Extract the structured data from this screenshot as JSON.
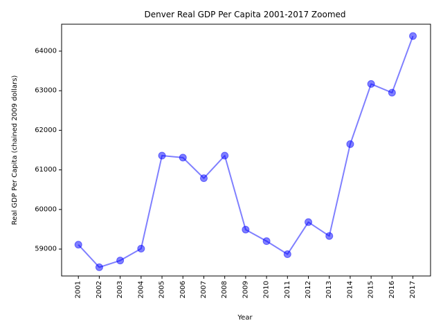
{
  "chart_data": {
    "type": "line",
    "title": "Denver Real GDP Per Capita 2001-2017 Zoomed",
    "xlabel": "Year",
    "ylabel": "Real GDP Per Capita (chained 2009 dollars)",
    "categories": [
      "2001",
      "2002",
      "2003",
      "2004",
      "2005",
      "2006",
      "2007",
      "2008",
      "2009",
      "2010",
      "2011",
      "2012",
      "2013",
      "2014",
      "2015",
      "2016",
      "2017"
    ],
    "series": [
      {
        "values": [
          59110,
          58540,
          58710,
          59010,
          61360,
          61310,
          60790,
          61360,
          59490,
          59200,
          58870,
          59680,
          59330,
          61650,
          63170,
          62950,
          64380
        ],
        "color": "#0000ff"
      }
    ],
    "ylim": [
      58320,
      64680
    ],
    "yticks": [
      59000,
      60000,
      61000,
      62000,
      63000,
      64000
    ],
    "ytick_labels": [
      "59000",
      "60000",
      "61000",
      "62000",
      "63000",
      "64000"
    ],
    "grid": false,
    "legend": "none"
  }
}
